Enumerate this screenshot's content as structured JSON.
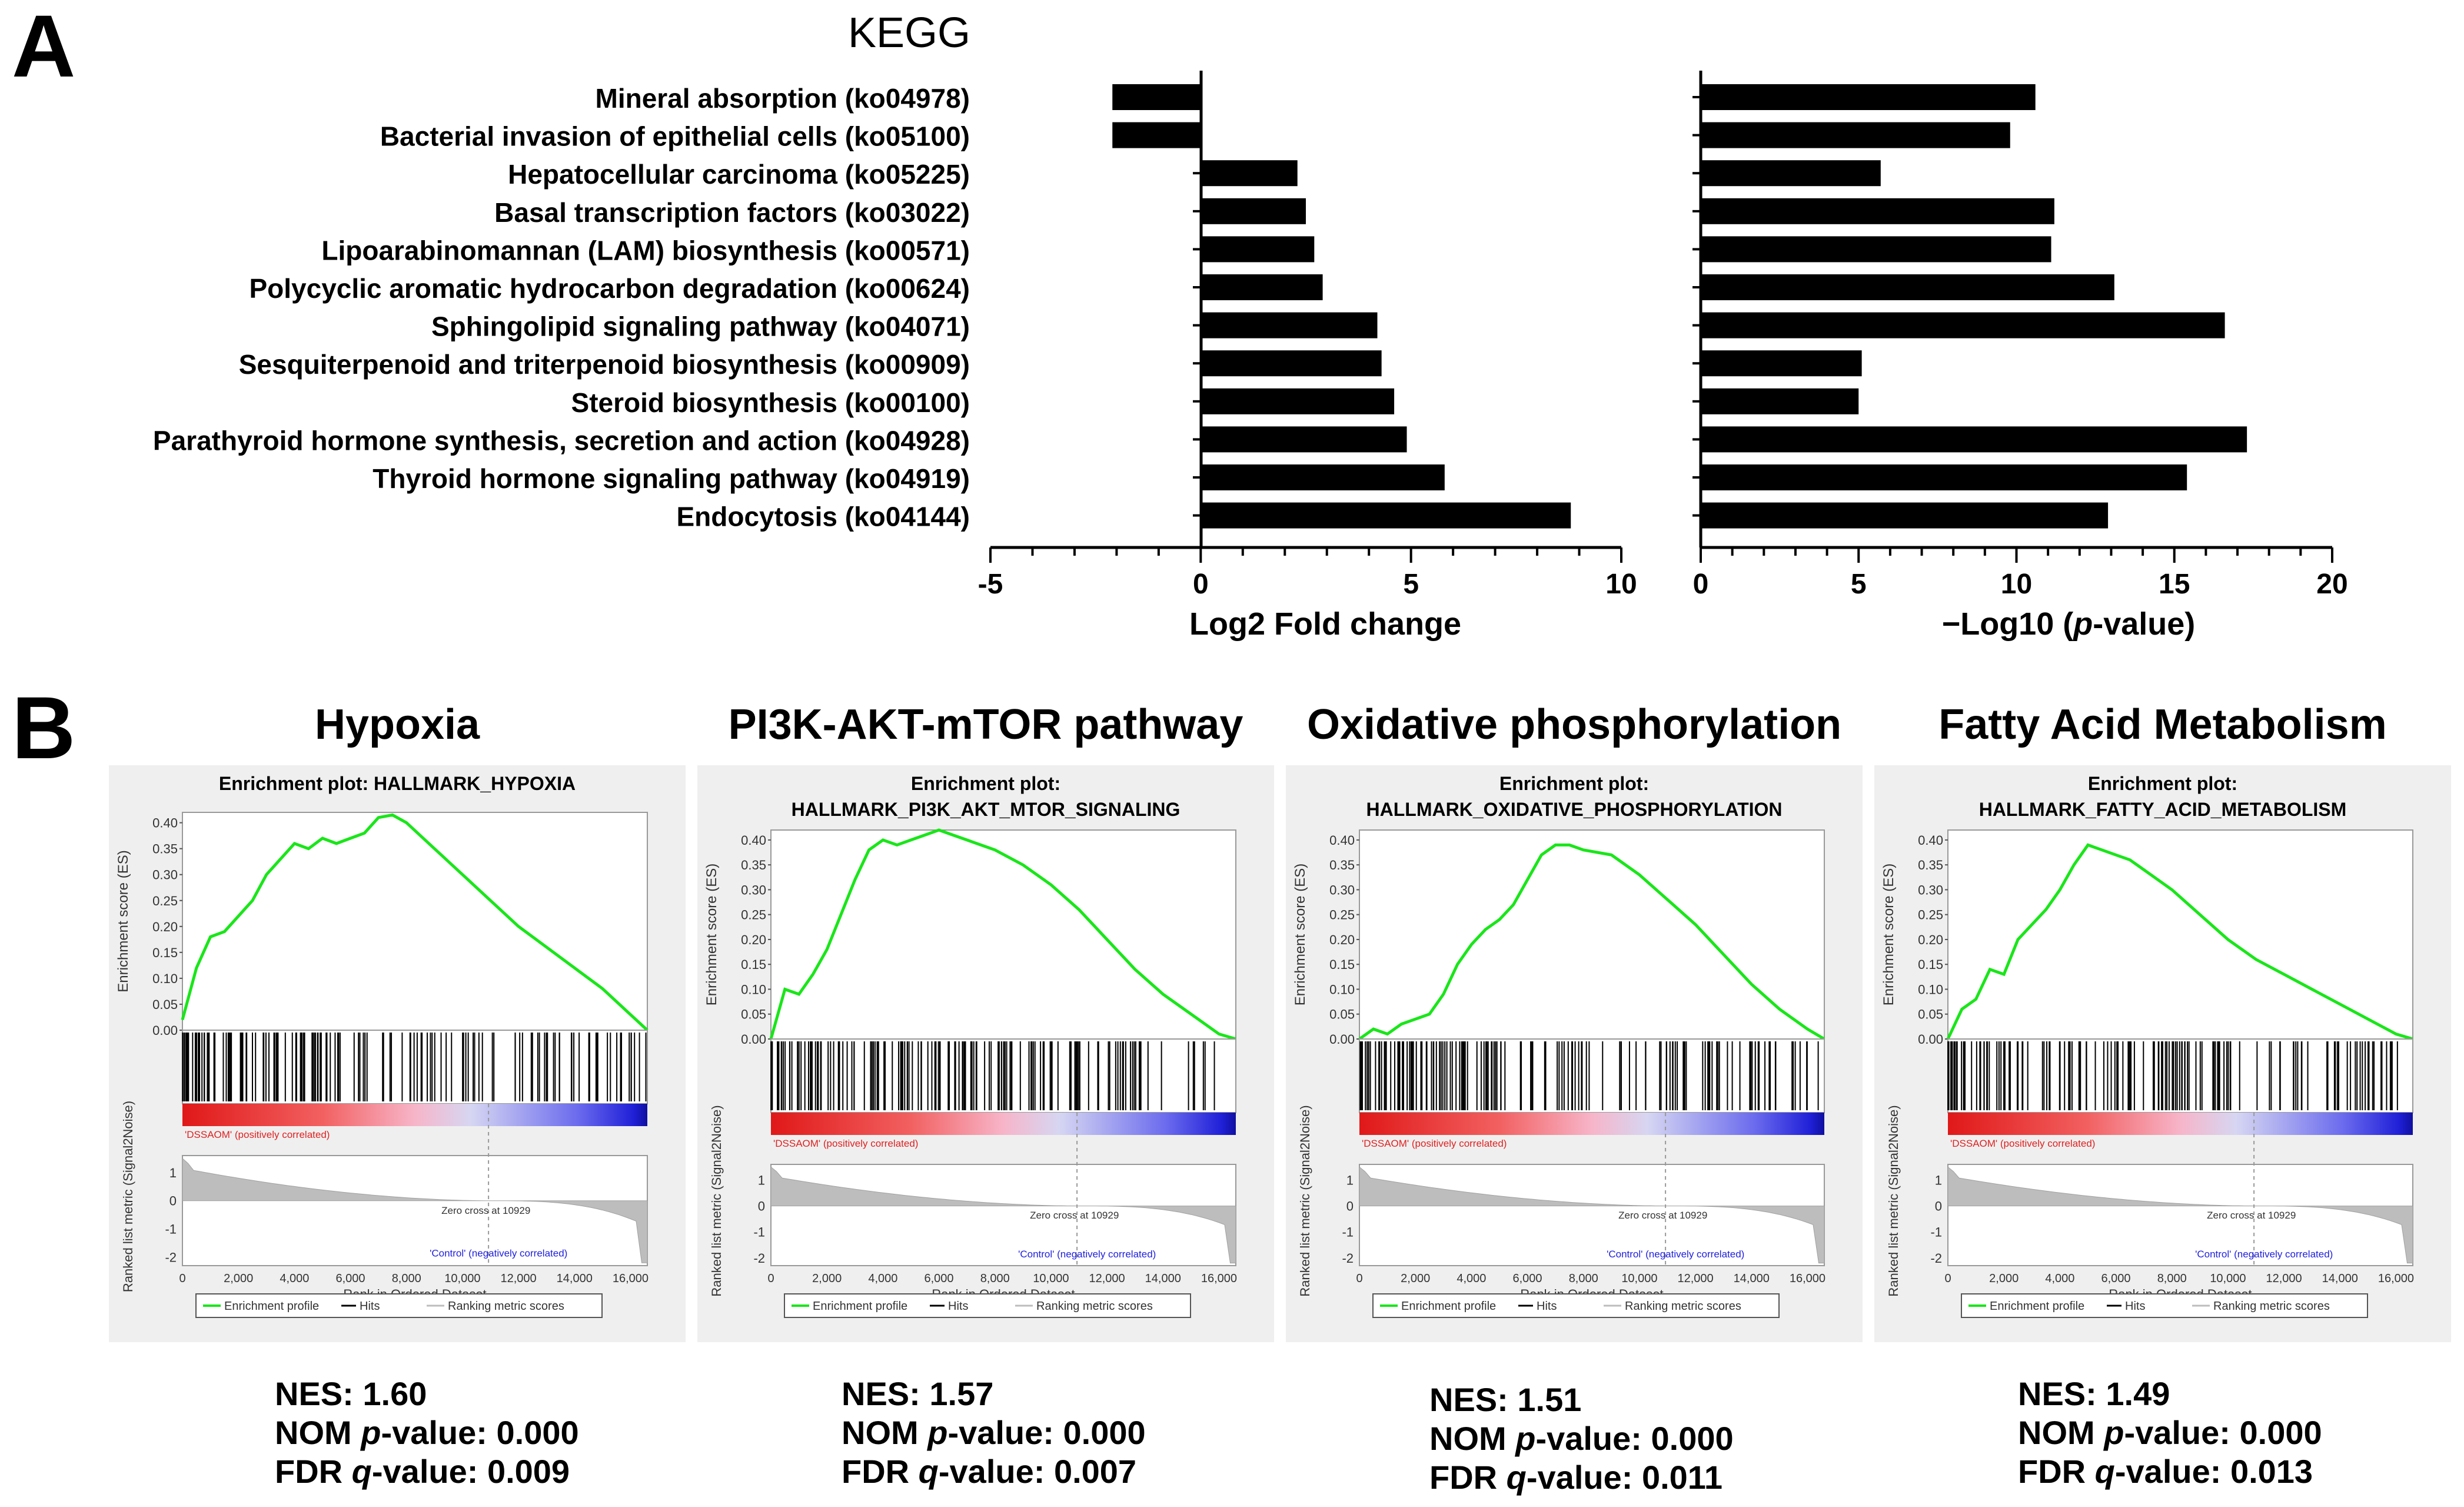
{
  "panel_a": {
    "letter": "A",
    "title": "KEGG",
    "left_xlabel": "Log2 Fold change",
    "right_xlabel_pre": "−Log10 (",
    "right_xlabel_ital": "p",
    "right_xlabel_post": "-value)"
  },
  "panel_b": {
    "letter": "B",
    "legend": {
      "enrichment": "Enrichment profile",
      "hits": "Hits",
      "ranking": "Ranking metric scores"
    },
    "ylabel_es": "Enrichment score (ES)",
    "ylabel_rank": "Ranked list metric (Signal2Noise)",
    "xlabel": "Rank in Ordered Dataset",
    "pos_label": "'DSSAOM' (positively correlated)",
    "neg_label": "'Control' (negatively correlated)",
    "zero_cross": "Zero cross at 10929",
    "plots": [
      {
        "title": "Hypoxia",
        "plot_title_1": "Enrichment plot: HALLMARK_HYPOXIA",
        "plot_title_2": "",
        "nes_label": "NES:",
        "nes": "1.60",
        "nom_label_pre": "NOM ",
        "nom_label_ital": "p",
        "nom_label_post": "-value:",
        "nom": "0.000",
        "fdr_label_pre": "FDR ",
        "fdr_label_ital": "q",
        "fdr_label_post": "-value:",
        "fdr": "0.009"
      },
      {
        "title": "PI3K-AKT-mTOR pathway",
        "plot_title_1": "Enrichment plot:",
        "plot_title_2": "HALLMARK_PI3K_AKT_MTOR_SIGNALING",
        "nes_label": "NES:",
        "nes": "1.57",
        "nom_label_pre": "NOM ",
        "nom_label_ital": "p",
        "nom_label_post": "-value:",
        "nom": "0.000",
        "fdr_label_pre": "FDR ",
        "fdr_label_ital": "q",
        "fdr_label_post": "-value:",
        "fdr": "0.007"
      },
      {
        "title": "Oxidative phosphorylation",
        "plot_title_1": "Enrichment plot:",
        "plot_title_2": "HALLMARK_OXIDATIVE_PHOSPHORYLATION",
        "nes_label": "NES:",
        "nes": "1.51",
        "nom_label_pre": "NOM ",
        "nom_label_ital": "p",
        "nom_label_post": "-value:",
        "nom": "0.000",
        "fdr_label_pre": "FDR ",
        "fdr_label_ital": "q",
        "fdr_label_post": "-value:",
        "fdr": "0.011"
      },
      {
        "title": "Fatty Acid Metabolism",
        "plot_title_1": "Enrichment plot:",
        "plot_title_2": "HALLMARK_FATTY_ACID_METABOLISM",
        "nes_label": "NES:",
        "nes": "1.49",
        "nom_label_pre": "NOM ",
        "nom_label_ital": "p",
        "nom_label_post": "-value:",
        "nom": "0.000",
        "fdr_label_pre": "FDR ",
        "fdr_label_ital": "q",
        "fdr_label_post": "-value:",
        "fdr": "0.013"
      }
    ]
  },
  "chart_data": [
    {
      "type": "bar",
      "orientation": "horizontal",
      "title": "KEGG",
      "categories": [
        "Mineral absorption (ko04978)",
        "Bacterial invasion of epithelial cells (ko05100)",
        "Hepatocellular carcinoma (ko05225)",
        "Basal transcription factors (ko03022)",
        "Lipoarabinomannan (LAM) biosynthesis (ko00571)",
        "Polycyclic aromatic hydrocarbon degradation (ko00624)",
        "Sphingolipid signaling pathway (ko04071)",
        "Sesquiterpenoid and triterpenoid biosynthesis (ko00909)",
        "Steroid biosynthesis (ko00100)",
        "Parathyroid hormone synthesis, secretion and action (ko04928)",
        "Thyroid hormone signaling pathway (ko04919)",
        "Endocytosis (ko04144)"
      ],
      "values": [
        -2.1,
        -2.1,
        2.3,
        2.5,
        2.7,
        2.9,
        4.2,
        4.3,
        4.6,
        4.9,
        5.8,
        8.8
      ],
      "xlabel": "Log2 Fold change",
      "xlim": [
        -5,
        10
      ],
      "xticks": [
        "-5",
        "0",
        "5",
        "10"
      ]
    },
    {
      "type": "bar",
      "orientation": "horizontal",
      "categories": [
        "Mineral absorption (ko04978)",
        "Bacterial invasion of epithelial cells (ko05100)",
        "Hepatocellular carcinoma (ko05225)",
        "Basal transcription factors (ko03022)",
        "Lipoarabinomannan (LAM) biosynthesis (ko00571)",
        "Polycyclic aromatic hydrocarbon degradation (ko00624)",
        "Sphingolipid signaling pathway (ko04071)",
        "Sesquiterpenoid and triterpenoid biosynthesis (ko00909)",
        "Steroid biosynthesis (ko00100)",
        "Parathyroid hormone synthesis, secretion and action (ko04928)",
        "Thyroid hormone signaling pathway (ko04919)",
        "Endocytosis (ko04144)"
      ],
      "values": [
        10.6,
        9.8,
        5.7,
        11.2,
        11.1,
        13.1,
        16.6,
        5.1,
        5.0,
        17.3,
        15.4,
        12.9
      ],
      "xlabel": "−Log10 (p-value)",
      "xlim": [
        0,
        20
      ],
      "xticks": [
        "0",
        "5",
        "10",
        "15",
        "20"
      ]
    },
    {
      "type": "line",
      "title": "Enrichment plot: HALLMARK_HYPOXIA",
      "ylabel": "Enrichment score (ES)",
      "xlabel": "Rank in Ordered Dataset",
      "ylim": [
        0,
        0.4
      ],
      "yticks": [
        "0.00",
        "0.05",
        "0.10",
        "0.15",
        "0.20",
        "0.25",
        "0.30",
        "0.35",
        "0.40"
      ],
      "xticks": [
        "0",
        "2,000",
        "4,000",
        "6,000",
        "8,000",
        "10,000",
        "12,000",
        "14,000",
        "16,000"
      ],
      "x": [
        0,
        500,
        1000,
        1500,
        2000,
        2500,
        3000,
        3500,
        4000,
        4500,
        5000,
        5500,
        6000,
        6500,
        7000,
        7500,
        8000,
        9000,
        10000,
        11000,
        12000,
        13000,
        14000,
        15000,
        16000,
        16600
      ],
      "values": [
        0.02,
        0.12,
        0.18,
        0.19,
        0.22,
        0.25,
        0.3,
        0.33,
        0.36,
        0.35,
        0.37,
        0.36,
        0.37,
        0.38,
        0.41,
        0.415,
        0.4,
        0.35,
        0.3,
        0.25,
        0.2,
        0.16,
        0.12,
        0.08,
        0.03,
        0.0
      ]
    },
    {
      "type": "line",
      "title": "Enrichment plot: HALLMARK_PI3K_AKT_MTOR_SIGNALING",
      "ylabel": "Enrichment score (ES)",
      "xlabel": "Rank in Ordered Dataset",
      "ylim": [
        0,
        0.4
      ],
      "yticks": [
        "0.00",
        "0.05",
        "0.10",
        "0.15",
        "0.20",
        "0.25",
        "0.30",
        "0.35",
        "0.40"
      ],
      "xticks": [
        "0",
        "2,000",
        "4,000",
        "6,000",
        "8,000",
        "10,000",
        "12,000",
        "14,000",
        "16,000"
      ],
      "x": [
        0,
        500,
        1000,
        1500,
        2000,
        2500,
        3000,
        3500,
        4000,
        4500,
        5000,
        5500,
        6000,
        6500,
        7000,
        7500,
        8000,
        9000,
        10000,
        11000,
        12000,
        13000,
        14000,
        15000,
        16000,
        16600
      ],
      "values": [
        0.0,
        0.1,
        0.09,
        0.13,
        0.18,
        0.25,
        0.32,
        0.38,
        0.4,
        0.39,
        0.4,
        0.41,
        0.42,
        0.41,
        0.4,
        0.39,
        0.38,
        0.35,
        0.31,
        0.26,
        0.2,
        0.14,
        0.09,
        0.05,
        0.01,
        0.0
      ]
    },
    {
      "type": "line",
      "title": "Enrichment plot: HALLMARK_OXIDATIVE_PHOSPHORYLATION",
      "ylabel": "Enrichment score (ES)",
      "xlabel": "Rank in Ordered Dataset",
      "ylim": [
        0,
        0.4
      ],
      "yticks": [
        "0.00",
        "0.05",
        "0.10",
        "0.15",
        "0.20",
        "0.25",
        "0.30",
        "0.35",
        "0.40"
      ],
      "xticks": [
        "0",
        "2,000",
        "4,000",
        "6,000",
        "8,000",
        "10,000",
        "12,000",
        "14,000",
        "16,000"
      ],
      "x": [
        0,
        500,
        1000,
        1500,
        2000,
        2500,
        3000,
        3500,
        4000,
        4500,
        5000,
        5500,
        6000,
        6500,
        7000,
        7500,
        8000,
        9000,
        10000,
        11000,
        12000,
        13000,
        14000,
        15000,
        16000,
        16600
      ],
      "values": [
        0.0,
        0.02,
        0.01,
        0.03,
        0.04,
        0.05,
        0.09,
        0.15,
        0.19,
        0.22,
        0.24,
        0.27,
        0.32,
        0.37,
        0.39,
        0.39,
        0.38,
        0.37,
        0.33,
        0.28,
        0.23,
        0.17,
        0.11,
        0.06,
        0.02,
        0.0
      ]
    },
    {
      "type": "line",
      "title": "Enrichment plot: HALLMARK_FATTY_ACID_METABOLISM",
      "ylabel": "Enrichment score (ES)",
      "xlabel": "Rank in Ordered Dataset",
      "ylim": [
        0,
        0.4
      ],
      "yticks": [
        "0.00",
        "0.05",
        "0.10",
        "0.15",
        "0.20",
        "0.25",
        "0.30",
        "0.35",
        "0.40"
      ],
      "xticks": [
        "0",
        "2,000",
        "4,000",
        "6,000",
        "8,000",
        "10,000",
        "12,000",
        "14,000",
        "16,000"
      ],
      "x": [
        0,
        500,
        1000,
        1500,
        2000,
        2500,
        3000,
        3500,
        4000,
        4500,
        5000,
        5500,
        6000,
        6500,
        7000,
        7500,
        8000,
        9000,
        10000,
        11000,
        12000,
        13000,
        14000,
        15000,
        16000,
        16600
      ],
      "values": [
        0.0,
        0.06,
        0.08,
        0.14,
        0.13,
        0.2,
        0.23,
        0.26,
        0.3,
        0.35,
        0.39,
        0.38,
        0.37,
        0.36,
        0.34,
        0.32,
        0.3,
        0.25,
        0.2,
        0.16,
        0.13,
        0.1,
        0.07,
        0.04,
        0.01,
        0.0
      ]
    }
  ]
}
